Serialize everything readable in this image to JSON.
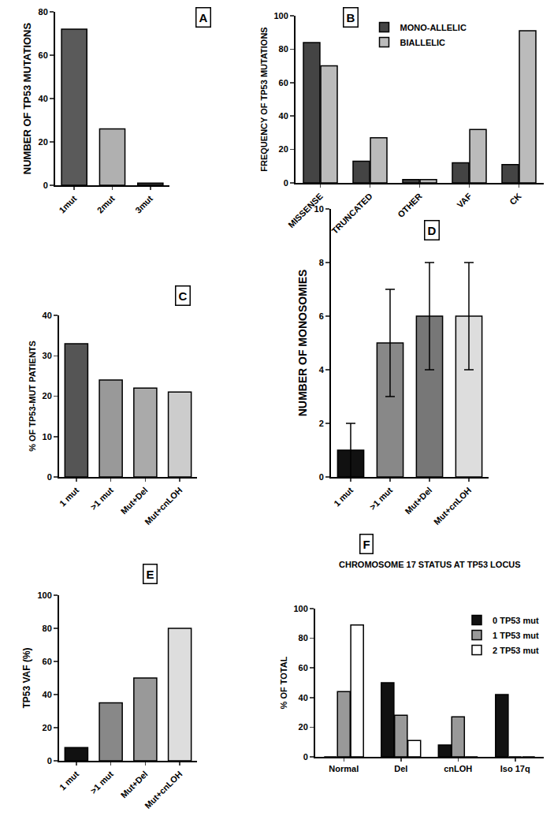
{
  "chart_data": [
    {
      "type": "bar",
      "title": "A",
      "y_label": "NUMBER OF TP53 MUTATIONS",
      "categories": [
        "1mut",
        "2mut",
        "3mut"
      ],
      "values": [
        72,
        26,
        1
      ],
      "colors": [
        "#5a5a5a",
        "#b0b0b0",
        "#333333"
      ],
      "ylim": [
        0,
        80
      ],
      "yticks": [
        0,
        20,
        40,
        60,
        80
      ],
      "grid": false
    },
    {
      "type": "bar",
      "title": "B",
      "y_label": "FREQUENCY OF TP53 MUTATIONS",
      "categories": [
        "MISSENSE",
        "TRUNCATED",
        "OTHER",
        "VAF",
        "CK"
      ],
      "series": [
        {
          "name": "MONO-ALLELIC",
          "color": "#444444",
          "values": [
            84,
            13,
            2,
            12,
            11
          ]
        },
        {
          "name": "BIALLELIC",
          "color": "#bbbbbb",
          "values": [
            70,
            27,
            2,
            32,
            91
          ]
        }
      ],
      "ylim": [
        0,
        100
      ],
      "yticks": [
        0,
        20,
        40,
        60,
        80,
        100
      ],
      "grid": false,
      "legend": "top"
    },
    {
      "type": "bar",
      "title": "C",
      "y_label": "% OF TP53-MUT PATIENTS",
      "categories": [
        "1 mut",
        ">1 mut",
        "Mut+Del",
        "Mut+cnLOH"
      ],
      "values": [
        33,
        24,
        22,
        21
      ],
      "colors": [
        "#555555",
        "#999999",
        "#aaaaaa",
        "#cccccc"
      ],
      "ylim": [
        0,
        40
      ],
      "yticks": [
        0,
        10,
        20,
        30,
        40
      ],
      "grid": false
    },
    {
      "type": "bar",
      "title": "D",
      "y_label": "NUMBER OF MONOSOMIES",
      "categories": [
        "1 mut",
        ">1 mut",
        "Mut+Del",
        "Mut+cnLOH"
      ],
      "values": [
        1,
        5,
        6,
        6
      ],
      "errors": [
        1,
        2,
        2,
        2
      ],
      "colors": [
        "#111111",
        "#888888",
        "#777777",
        "#dddddd"
      ],
      "ylim": [
        0,
        10
      ],
      "yticks": [
        0,
        2,
        4,
        6,
        8,
        10
      ],
      "grid": false
    },
    {
      "type": "bar",
      "title": "E",
      "y_label": "TP53 VAF (%)",
      "categories": [
        "1 mut",
        ">1 mut",
        "Mut+Del",
        "Mut+cnLOH"
      ],
      "values": [
        8,
        35,
        50,
        80
      ],
      "colors": [
        "#111111",
        "#888888",
        "#999999",
        "#dddddd"
      ],
      "ylim": [
        0,
        100
      ],
      "yticks": [
        0,
        20,
        40,
        60,
        80,
        100
      ],
      "grid": false
    },
    {
      "type": "bar",
      "title": "F",
      "subtitle": "CHROMOSOME 17 STATUS AT TP53 LOCUS",
      "y_label": "% OF TOTAL",
      "categories": [
        "Normal",
        "Del",
        "cnLOH",
        "Iso 17q"
      ],
      "series": [
        {
          "name": "0 TP53 mut",
          "color": "#111111",
          "values": [
            0,
            50,
            8,
            42
          ]
        },
        {
          "name": "1 TP53 mut",
          "color": "#999999",
          "values": [
            44,
            28,
            27,
            0
          ]
        },
        {
          "name": "2 TP53 mut",
          "color": "#ffffff",
          "values": [
            89,
            11,
            0,
            0
          ]
        }
      ],
      "ylim": [
        0,
        100
      ],
      "yticks": [
        0,
        20,
        40,
        60,
        80,
        100
      ],
      "grid": false,
      "legend": "top right"
    }
  ]
}
